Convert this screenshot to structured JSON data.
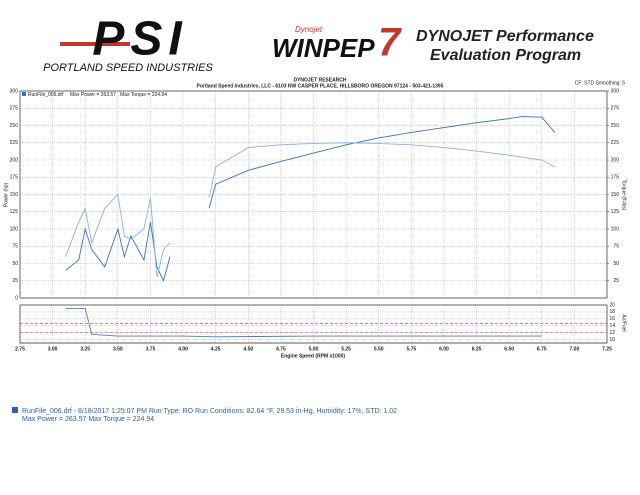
{
  "header": {
    "logo": "PSI",
    "logo_subtitle": "PORTLAND SPEED INDUSTRIES",
    "winpep_brand": "Dynojet",
    "winpep": "WINPEP",
    "winpep_version": "7",
    "program_title_1": "DYNOJET Performance",
    "program_title_2": "Evaluation Program"
  },
  "chart_data": [
    {
      "type": "line",
      "title": "DYNOJET RESEARCH",
      "subtitle": "Portland Speed Industries, LLC - 6103 NW CASPER PLACE, HILLSBORO OREGON 97124 - 503-421-1395",
      "note": "CF: STD Smoothing: 5",
      "legend_file": "RunFile_006.drf",
      "legend_power": "Max Power = 263.57",
      "legend_torque": "Max Torque = 224.94",
      "xlabel": "Engine Speed (RPM x1000)",
      "ylabel": "Power (hp)",
      "y2label": "Torque (ft-lbs)",
      "x": [
        3.1,
        3.2,
        3.25,
        3.3,
        3.4,
        3.5,
        3.55,
        3.6,
        3.7,
        3.75,
        3.8,
        3.85,
        3.9,
        4.0,
        4.2,
        4.25,
        4.5,
        4.75,
        5,
        5.25,
        5.5,
        5.75,
        6,
        6.25,
        6.5,
        6.6,
        6.75,
        6.85
      ],
      "series": [
        {
          "color": "#3a6fc4",
          "values": [
            40,
            55,
            100,
            70,
            45,
            100,
            60,
            90,
            55,
            110,
            45,
            25,
            60,
            null,
            130,
            165,
            185,
            198,
            210,
            222,
            232,
            240,
            247,
            254,
            260,
            263,
            262,
            240
          ]
        },
        {
          "color": "#8eb0e0",
          "axis": "y2",
          "values": [
            60,
            110,
            130,
            80,
            130,
            150,
            90,
            85,
            100,
            145,
            30,
            70,
            80,
            null,
            145,
            190,
            218,
            222,
            224,
            225,
            224,
            222,
            218,
            213,
            207,
            204,
            200,
            190
          ]
        }
      ],
      "xlim": [
        2.75,
        7.25
      ],
      "xticks": [
        2.75,
        {
          "value": 3,
          "label": "3.00"
        },
        3.25,
        {
          "value": 3.5,
          "label": "3.50"
        },
        3.75,
        {
          "value": 4,
          "label": "4.00"
        },
        4.25,
        {
          "value": 4.5,
          "label": "4.50"
        },
        4.75,
        {
          "value": 5,
          "label": "5.00"
        },
        5.25,
        {
          "value": 5.5,
          "label": "5.50"
        },
        5.75,
        {
          "value": 6,
          "label": "6.00"
        },
        6.25,
        {
          "value": 6.5,
          "label": "6.50"
        },
        6.75,
        {
          "value": 7,
          "label": "7.00"
        },
        7.25
      ],
      "ylim": [
        0,
        300
      ],
      "yticks": [
        0,
        25,
        50,
        75,
        100,
        125,
        150,
        175,
        200,
        225,
        250,
        275,
        300
      ],
      "y2lim": [
        0,
        300
      ],
      "y2ticks": [
        25,
        50,
        75,
        100,
        125,
        150,
        175,
        200,
        225,
        250,
        275,
        300
      ],
      "grid": true
    },
    {
      "type": "line",
      "ylabel": "Air/Fuel",
      "x": [
        3.1,
        3.25,
        3.3,
        3.5,
        4.0,
        4.25,
        5,
        6,
        6.75
      ],
      "series": [
        {
          "color": "#4a7bd0",
          "values": [
            19,
            19,
            11.5,
            11,
            11,
            10.8,
            11,
            11,
            11
          ]
        }
      ],
      "ref_lines": [
        12,
        14.7
      ],
      "ref_color": "#d33",
      "ylim": [
        9,
        20
      ],
      "yticks": [
        10,
        12,
        14,
        16,
        18,
        20
      ],
      "grid": true
    }
  ],
  "footer": {
    "line1": "RunFile_006.drf - 8/18/2017 1:25:07 PM  Run Type: RO  Run Conditions: 82.64 °F, 29.53 in-Hg,  Humidity:  17%, STD: 1.02",
    "line2": "Max Power = 263.57  Max Torque = 224.94"
  }
}
